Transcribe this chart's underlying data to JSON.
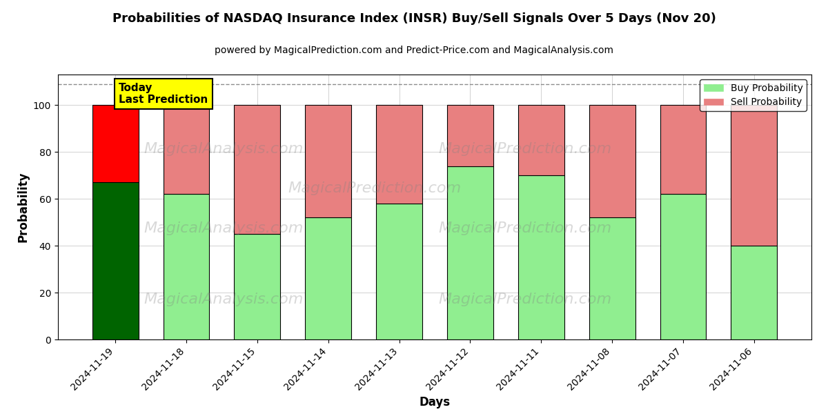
{
  "title": "Probabilities of NASDAQ Insurance Index (INSR) Buy/Sell Signals Over 5 Days (Nov 20)",
  "subtitle": "powered by MagicalPrediction.com and Predict-Price.com and MagicalAnalysis.com",
  "xlabel": "Days",
  "ylabel": "Probability",
  "categories": [
    "2024-11-19",
    "2024-11-18",
    "2024-11-15",
    "2024-11-14",
    "2024-11-13",
    "2024-11-12",
    "2024-11-11",
    "2024-11-08",
    "2024-11-07",
    "2024-11-06"
  ],
  "buy_values": [
    67,
    62,
    45,
    52,
    58,
    74,
    70,
    52,
    62,
    40
  ],
  "sell_values": [
    33,
    38,
    55,
    48,
    42,
    26,
    30,
    48,
    38,
    60
  ],
  "today_buy_color": "#006400",
  "today_sell_color": "#FF0000",
  "buy_color": "#90EE90",
  "sell_color": "#E88080",
  "today_label_bg": "#FFFF00",
  "today_label_text": "Today\nLast Prediction",
  "legend_buy": "Buy Probability",
  "legend_sell": "Sell Probability",
  "ylim": [
    0,
    113
  ],
  "yticks": [
    0,
    20,
    40,
    60,
    80,
    100
  ],
  "dashed_line_y": 109,
  "bar_edgecolor": "#000000",
  "bar_linewidth": 0.8,
  "figsize": [
    12.0,
    6.0
  ],
  "dpi": 100
}
